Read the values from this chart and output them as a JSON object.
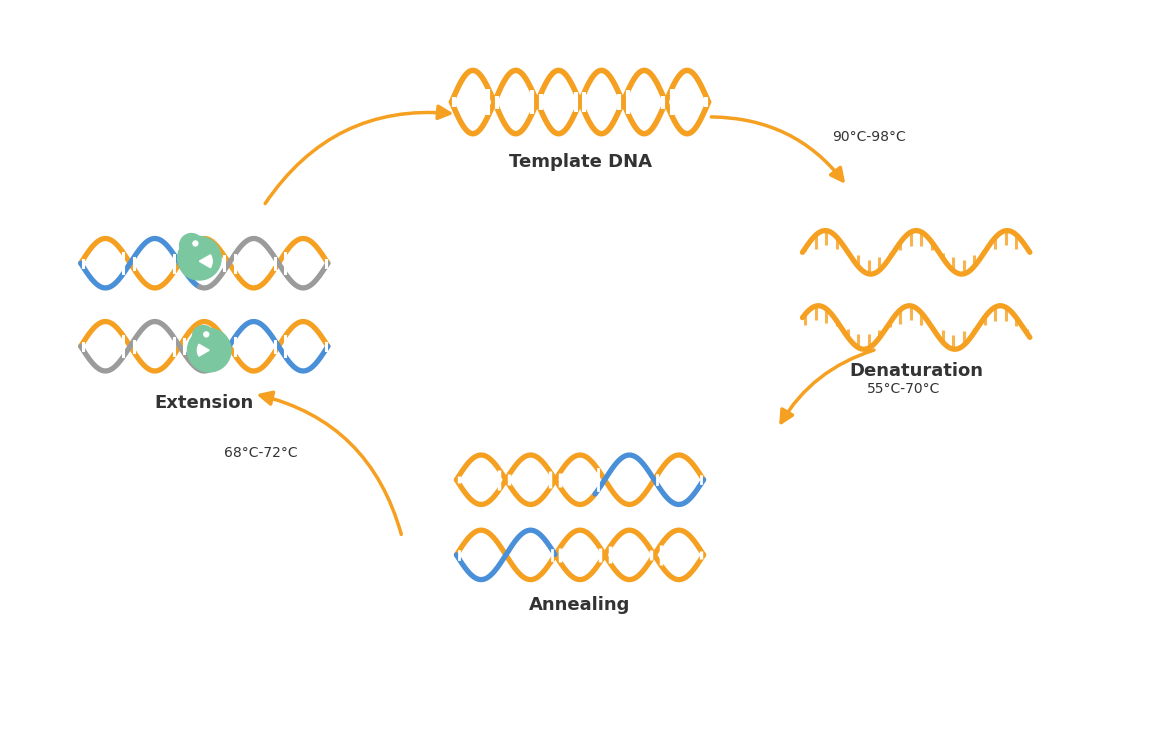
{
  "bg_color": "#ffffff",
  "orange": "#F5A020",
  "blue": "#4A90D9",
  "green_light": "#7BC8A0",
  "green_dark": "#5BAD8F",
  "gray": "#9B9B9B",
  "text_color": "#333333",
  "label_fontsize": 13,
  "temp_fontsize": 10,
  "title": "Template DNA",
  "denaturation": "Denaturation",
  "annealing": "Annealing",
  "extension": "Extension",
  "temp1": "90°C-98°C",
  "temp2": "55°C-70°C",
  "temp3": "68°C-72°C"
}
